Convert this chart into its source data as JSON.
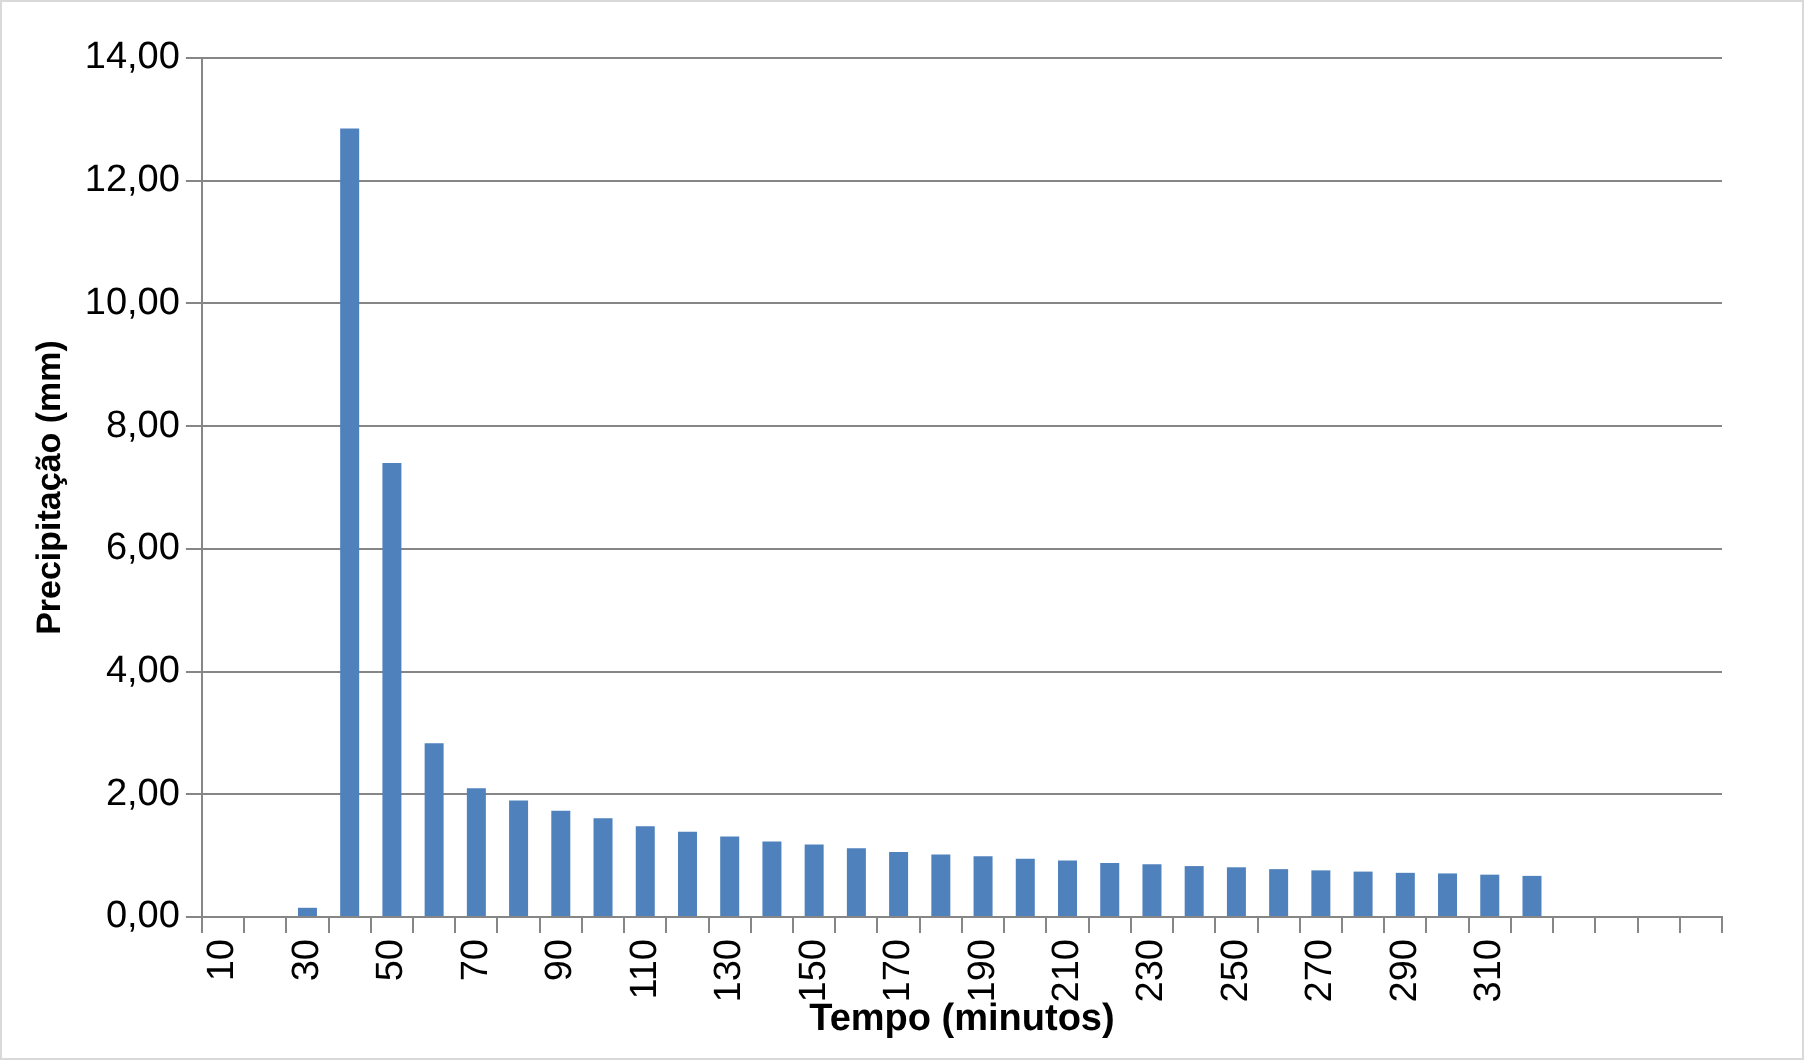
{
  "chart_data": {
    "type": "bar",
    "xlabel": "Tempo (minutos)",
    "ylabel": "Precipitação (mm)",
    "categories": [
      "10",
      null,
      "30",
      null,
      "50",
      null,
      "70",
      null,
      "90",
      null,
      "110",
      null,
      "130",
      null,
      "150",
      null,
      "170",
      null,
      "190",
      null,
      "210",
      null,
      "230",
      null,
      "250",
      null,
      "270",
      null,
      "290",
      null,
      "310",
      null,
      null,
      null,
      null,
      null
    ],
    "values": [
      null,
      null,
      0.15,
      12.85,
      7.4,
      2.83,
      2.1,
      1.9,
      1.73,
      1.61,
      1.48,
      1.39,
      1.31,
      1.23,
      1.18,
      1.12,
      1.06,
      1.02,
      0.99,
      0.95,
      0.92,
      0.88,
      0.86,
      0.83,
      0.81,
      0.78,
      0.76,
      0.74,
      0.72,
      0.71,
      0.69,
      0.67,
      null,
      null,
      null,
      null
    ],
    "color": "#4f81bd",
    "ylim": [
      0,
      14
    ],
    "yticks": [
      {
        "value": 0,
        "label": "0,00"
      },
      {
        "value": 2,
        "label": "2,00"
      },
      {
        "value": 4,
        "label": "4,00"
      },
      {
        "value": 6,
        "label": "6,00"
      },
      {
        "value": 8,
        "label": "8,00"
      },
      {
        "value": 10,
        "label": "10,00"
      },
      {
        "value": 12,
        "label": "12,00"
      },
      {
        "value": 14,
        "label": "14,00"
      }
    ],
    "grid": "y"
  }
}
